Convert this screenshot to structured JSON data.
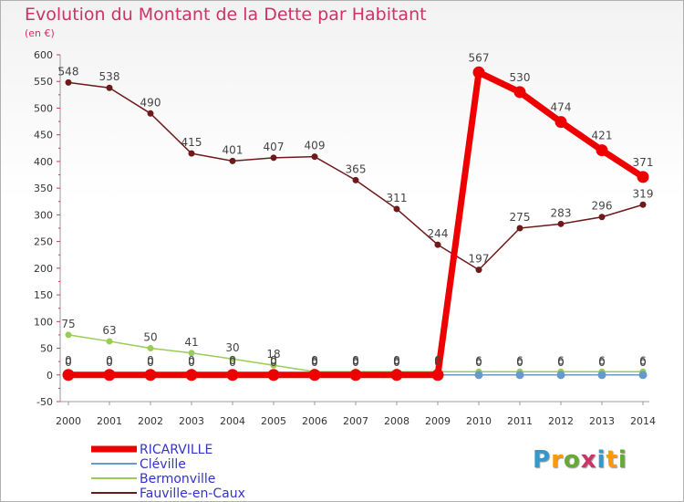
{
  "title": "Evolution du Montant de la Dette par Habitant",
  "subtitle": "(en €)",
  "logo_text": "Proxiti",
  "chart_data": {
    "type": "line",
    "x": [
      2000,
      2001,
      2002,
      2003,
      2004,
      2005,
      2006,
      2007,
      2008,
      2009,
      2010,
      2011,
      2012,
      2013,
      2014
    ],
    "xticks": [
      "2000",
      "2001",
      "2002",
      "2003",
      "2004",
      "2005",
      "2006",
      "2007",
      "2008",
      "2009",
      "2010",
      "2011",
      "2012",
      "2013",
      "2014"
    ],
    "ylim": [
      -50,
      600
    ],
    "yticks": [
      -50,
      0,
      50,
      100,
      150,
      200,
      250,
      300,
      350,
      400,
      450,
      500,
      550,
      600
    ],
    "grid": false,
    "legend_position": "bottom-left",
    "series": [
      {
        "name": "Fauville-en-Caux",
        "color": "#6e1a1a",
        "values": [
          548,
          538,
          490,
          415,
          401,
          407,
          409,
          365,
          311,
          244,
          197,
          275,
          283,
          296,
          319
        ],
        "labels": [
          "548",
          "538",
          "490",
          "415",
          "401",
          "407",
          "409",
          "365",
          "311",
          "244",
          "197",
          "275",
          "283",
          "296",
          "319"
        ]
      },
      {
        "name": "Bermonville",
        "color": "#99cc55",
        "values": [
          75,
          63,
          50,
          41,
          30,
          18,
          6,
          6,
          6,
          6,
          6,
          6,
          6,
          6,
          6
        ],
        "labels": [
          "75",
          "63",
          "50",
          "41",
          "30",
          "18",
          "6",
          "6",
          "6",
          "6",
          "6",
          "6",
          "6",
          "6",
          "6"
        ]
      },
      {
        "name": "Cléville",
        "color": "#6699cc",
        "values": [
          0,
          0,
          0,
          0,
          0,
          0,
          0,
          0,
          0,
          0,
          0,
          0,
          0,
          0,
          0
        ],
        "labels": [
          "0",
          "0",
          "0",
          "0",
          "0",
          "0",
          "0",
          "0",
          "0",
          "0",
          "0",
          "0",
          "0",
          "0",
          "0"
        ]
      },
      {
        "name": "RICARVILLE",
        "color": "#ee0000",
        "values": [
          0,
          0,
          0,
          0,
          0,
          0,
          0,
          0,
          0,
          0,
          567,
          530,
          474,
          421,
          371
        ],
        "labels": [
          "0",
          "0",
          "0",
          "0",
          "0",
          "0",
          "0",
          "0",
          "0",
          "0",
          "567",
          "530",
          "474",
          "421",
          "371"
        ]
      }
    ],
    "legend": [
      {
        "name": "RICARVILLE",
        "color": "#ee0000",
        "text_color": "#3333cc"
      },
      {
        "name": "Cléville",
        "color": "#6699cc",
        "text_color": "#3333cc"
      },
      {
        "name": "Bermonville",
        "color": "#99cc55",
        "text_color": "#3333cc"
      },
      {
        "name": "Fauville-en-Caux",
        "color": "#6e1a1a",
        "text_color": "#3333cc"
      }
    ]
  }
}
